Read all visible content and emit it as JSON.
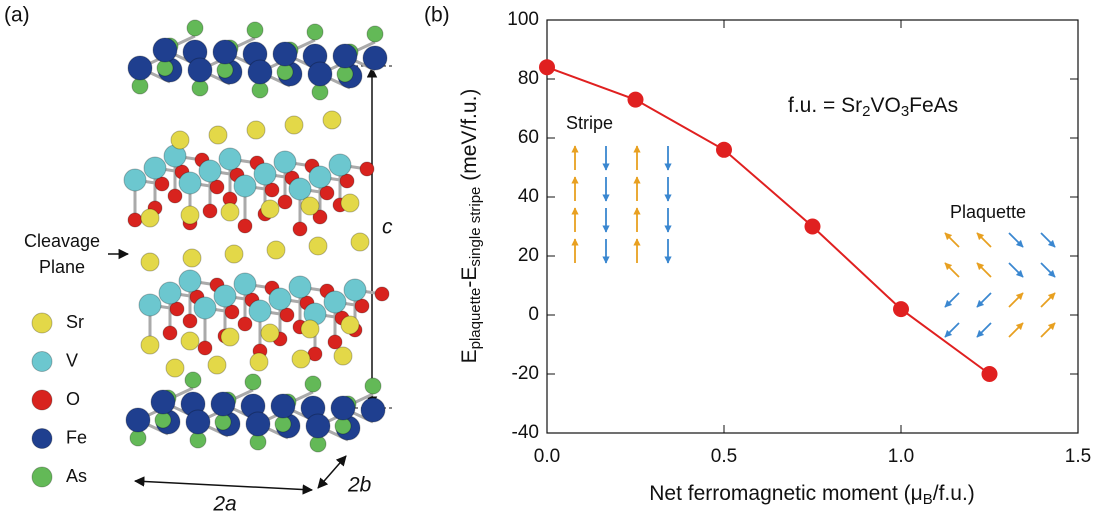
{
  "structure": {
    "panel_label": "(a)",
    "cleavage_label": [
      "Cleavage",
      "Plane"
    ],
    "c_label": "c",
    "a_label": "2a",
    "b_label": "2b",
    "legend": [
      "Sr",
      "V",
      "O",
      "Fe",
      "As"
    ]
  },
  "chart_data": {
    "type": "line",
    "panel_label": "(b)",
    "x": [
      0,
      0.25,
      0.5,
      0.75,
      1.0,
      1.25
    ],
    "series": [
      {
        "color": "#e02020",
        "values": [
          84,
          73,
          56,
          30,
          2,
          -20
        ]
      }
    ],
    "xlim": [
      0,
      1.5
    ],
    "ylim": [
      -40,
      100
    ],
    "xticks": [
      {
        "value": 0,
        "label": "0.0"
      },
      0.5,
      {
        "value": 1,
        "label": "1.0"
      },
      1.5
    ],
    "yticks": [
      -40,
      -20,
      0,
      20,
      40,
      60,
      80,
      100
    ],
    "xlabel": [
      "Net ferromagnetic moment (μ",
      "B",
      "/f.u.)"
    ],
    "ylabel": [
      "E",
      "plaquette",
      "-E",
      "single stripe",
      " (meV/f.u.)"
    ],
    "annotation": [
      "f.u. = Sr",
      "2",
      "VO",
      "3",
      "FeAs"
    ],
    "stripe_label": "Stripe",
    "plaquette_label": "Plaquette"
  }
}
